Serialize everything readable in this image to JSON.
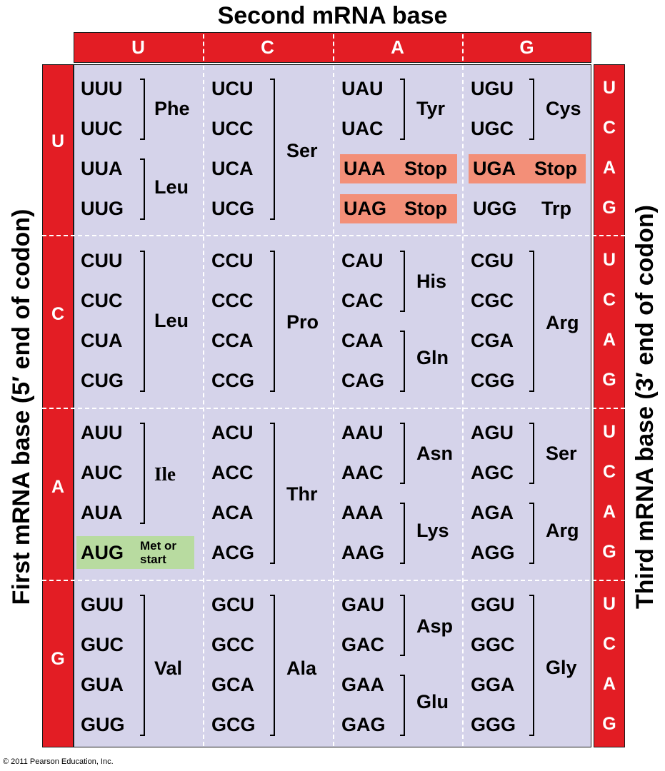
{
  "labels": {
    "second_base": "Second mRNA base",
    "first_base": "First mRNA base  (5′ end of codon)",
    "third_base": "Third mRNA base  (3′ end of codon)",
    "copyright": "© 2011 Pearson Education, Inc."
  },
  "bases": [
    "U",
    "C",
    "A",
    "G"
  ],
  "codons": {
    "U": {
      "U": [
        "UUU",
        "UUC",
        "UUA",
        "UUG"
      ],
      "C": [
        "UCU",
        "UCC",
        "UCA",
        "UCG"
      ],
      "A": [
        "UAU",
        "UAC",
        "UAA",
        "UAG"
      ],
      "G": [
        "UGU",
        "UGC",
        "UGA",
        "UGG"
      ]
    },
    "C": {
      "U": [
        "CUU",
        "CUC",
        "CUA",
        "CUG"
      ],
      "C": [
        "CCU",
        "CCC",
        "CCA",
        "CCG"
      ],
      "A": [
        "CAU",
        "CAC",
        "CAA",
        "CAG"
      ],
      "G": [
        "CGU",
        "CGC",
        "CGA",
        "CGG"
      ]
    },
    "A": {
      "U": [
        "AUU",
        "AUC",
        "AUA",
        "AUG"
      ],
      "C": [
        "ACU",
        "ACC",
        "ACA",
        "ACG"
      ],
      "A": [
        "AAU",
        "AAC",
        "AAA",
        "AAG"
      ],
      "G": [
        "AGU",
        "AGC",
        "AGA",
        "AGG"
      ]
    },
    "G": {
      "U": [
        "GUU",
        "GUC",
        "GUA",
        "GUG"
      ],
      "C": [
        "GCU",
        "GCC",
        "GCA",
        "GCG"
      ],
      "A": [
        "GAU",
        "GAC",
        "GAA",
        "GAG"
      ],
      "G": [
        "GGU",
        "GGC",
        "GGA",
        "GGG"
      ]
    }
  },
  "amino_acids": {
    "UU_top": "Phe",
    "UU_bottom": "Leu",
    "UC": "Ser",
    "UA_top": "Tyr",
    "UA_stop": "Stop",
    "UG_top": "Cys",
    "UG_stop": "Stop",
    "UG_trp": "Trp",
    "CU": "Leu",
    "CC": "Pro",
    "CA_top": "His",
    "CA_bottom": "Gln",
    "CG": "Arg",
    "AU": "Ile",
    "AU_start_line1": "Met or",
    "AU_start_line2": "start",
    "AC": "Thr",
    "AA_top": "Asn",
    "AA_bottom": "Lys",
    "AG_top": "Ser",
    "AG_bottom": "Arg",
    "GU": "Val",
    "GC": "Ala",
    "GA_top": "Asp",
    "GA_bottom": "Glu",
    "GG": "Gly"
  },
  "colors": {
    "band": "#e31d24",
    "grid": "#d5d3ea",
    "stop": "#f38f78",
    "start": "#b8dba0"
  }
}
